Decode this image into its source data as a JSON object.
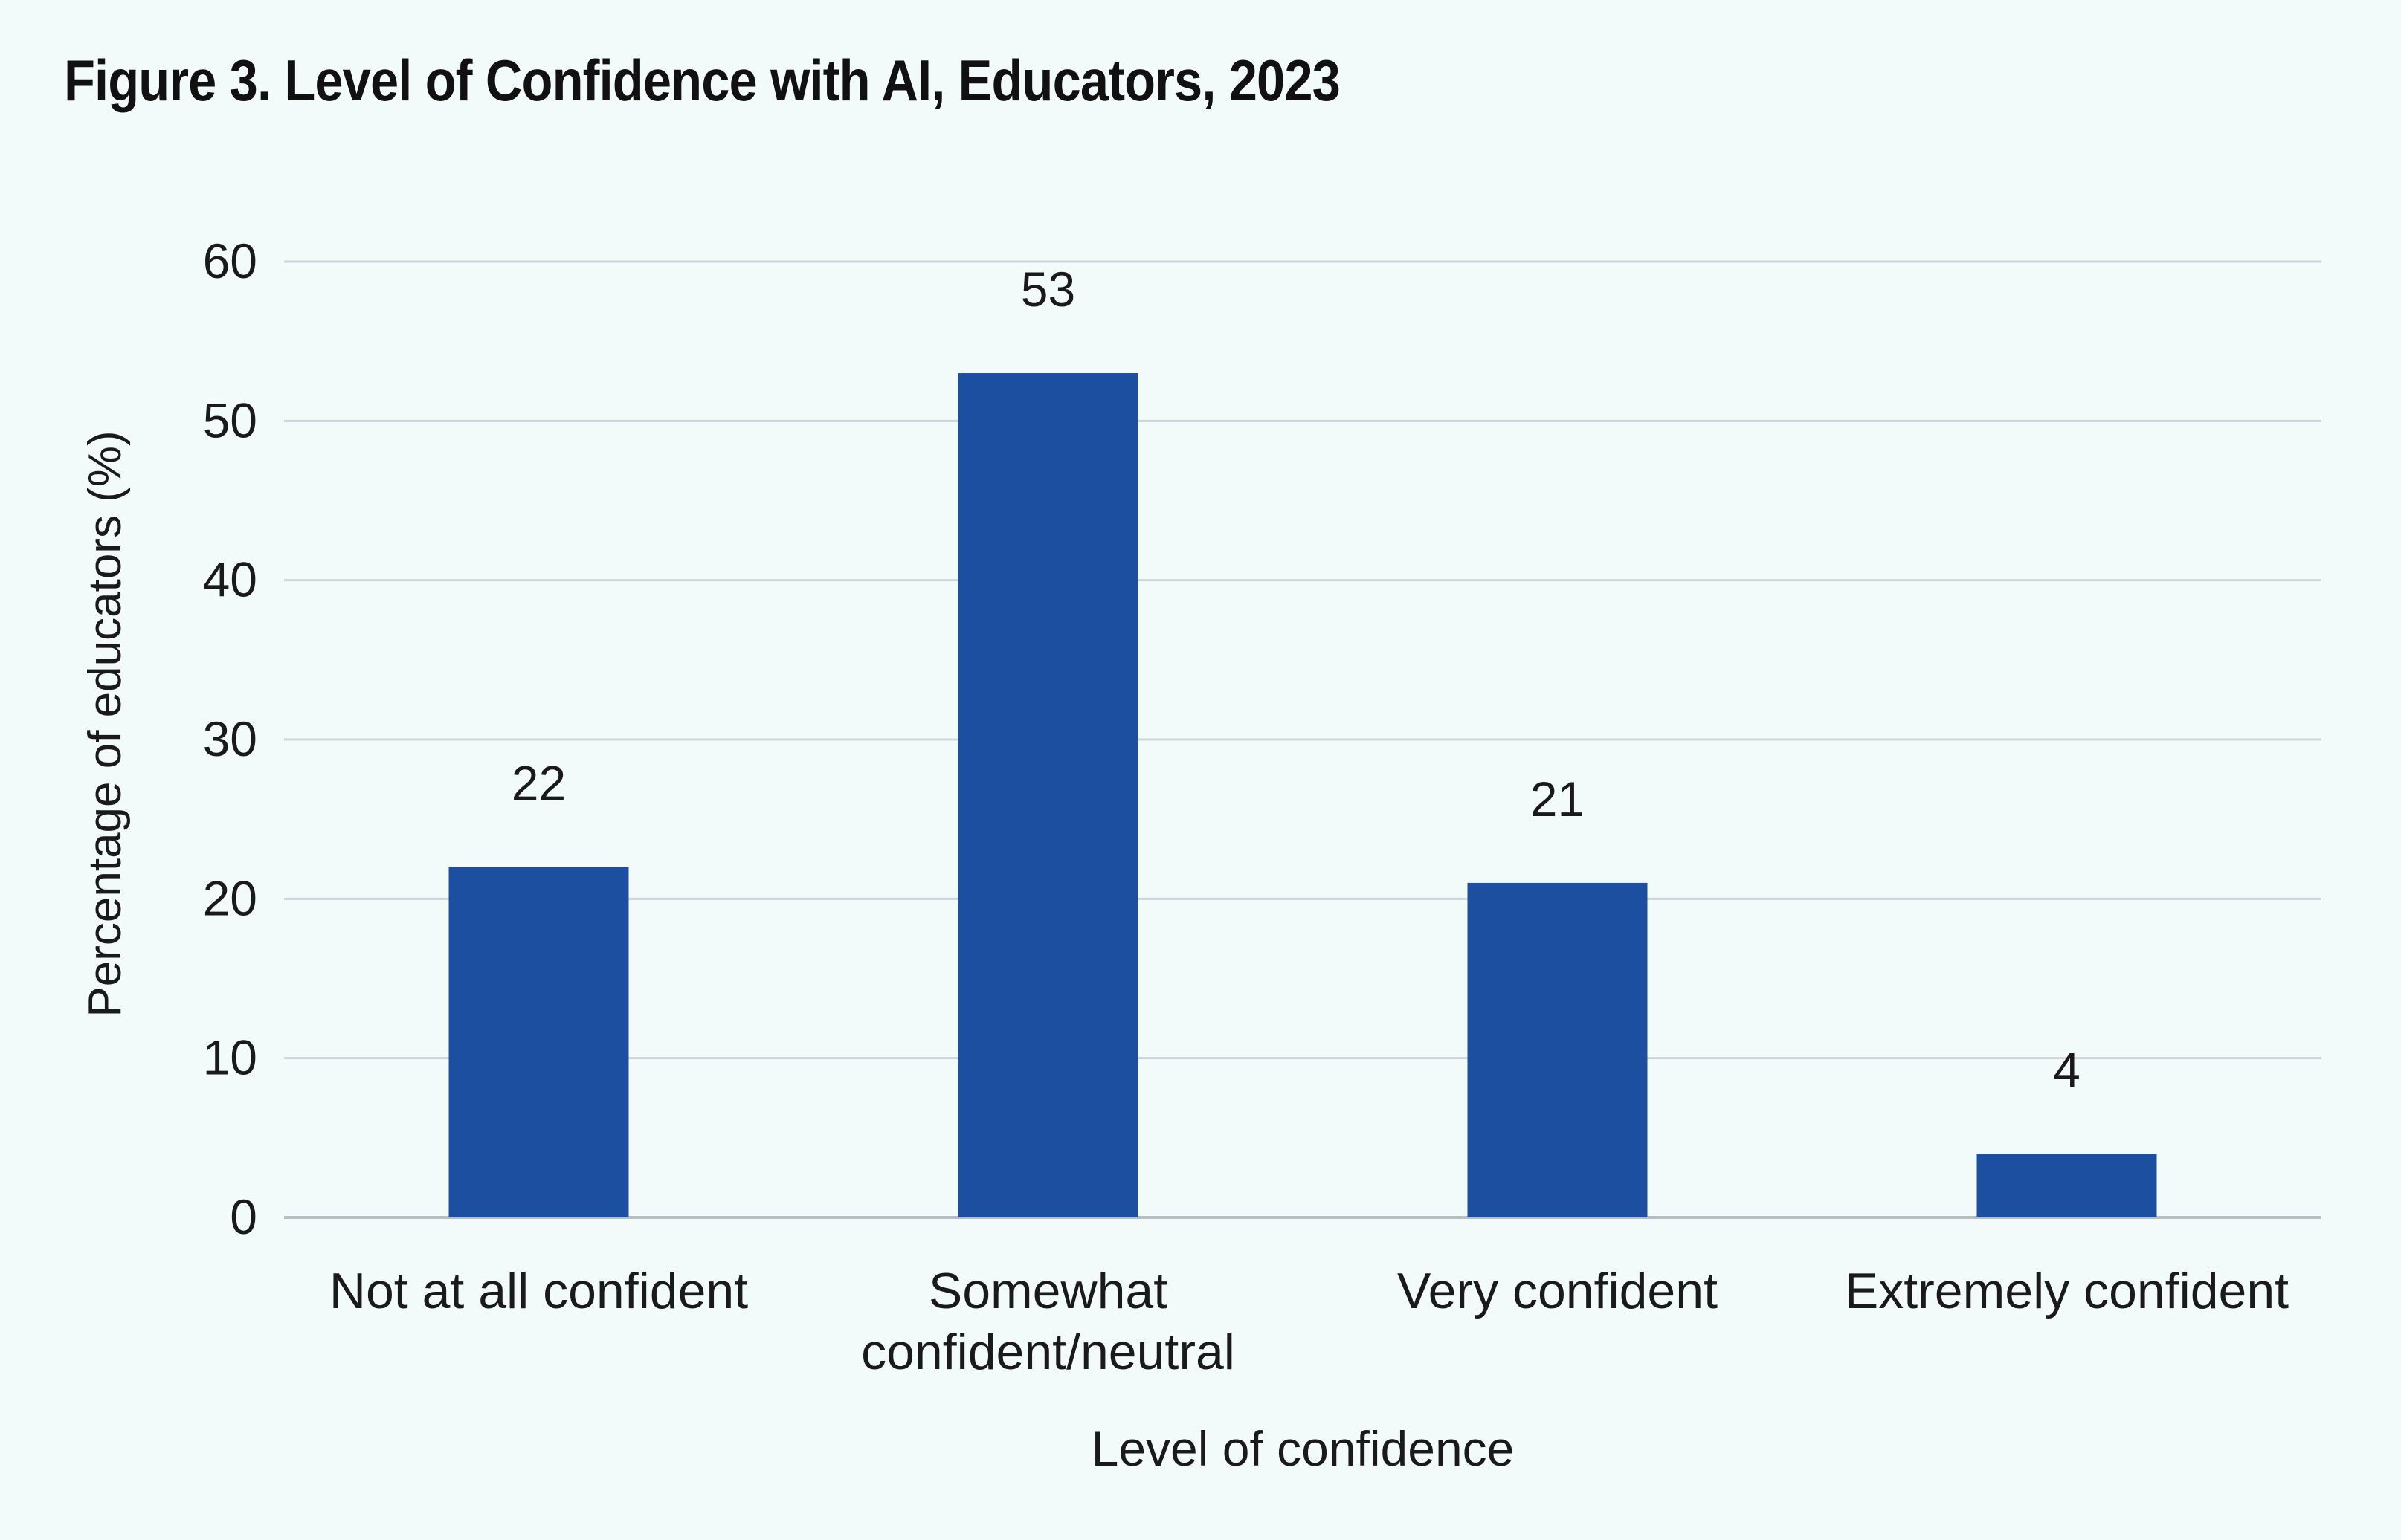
{
  "page": {
    "title": "Figure 3. Level of Confidence with AI, Educators, 2023"
  },
  "colors": {
    "background": "#f3fbfa",
    "bar": "#1d4fa0",
    "gridline": "#cfd4d8",
    "text": "#1a1a1a"
  },
  "chart_data": {
    "type": "bar",
    "title": "Figure 3. Level of Confidence with AI, Educators, 2023",
    "categories": [
      [
        "Not at all confident"
      ],
      [
        "Somewhat",
        "confident/neutral"
      ],
      [
        "Very confident"
      ],
      [
        "Extremely confident"
      ]
    ],
    "values": [
      22,
      53,
      21,
      4
    ],
    "data_labels": [
      "22",
      "53",
      "21",
      "4"
    ],
    "xlabel": "Level of confidence",
    "ylabel": "Percentage of educators (%)",
    "ylim": [
      0,
      60
    ],
    "yticks": [
      0,
      10,
      20,
      30,
      40,
      50,
      60
    ],
    "grid": true,
    "legend": "none"
  }
}
